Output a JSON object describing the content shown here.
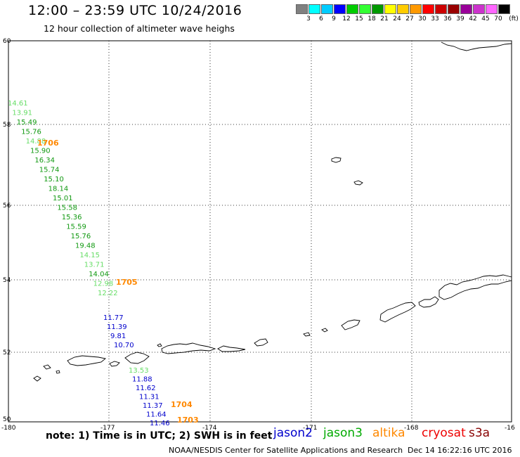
{
  "header": {
    "title": "12:00 – 23:59 UTC 10/24/2016",
    "subtitle": "12 hour collection of altimeter wave heighs"
  },
  "colorbar": {
    "unit": "(ft)",
    "colors": [
      "#808080",
      "#00ffff",
      "#00ccff",
      "#0000ff",
      "#00cc00",
      "#33ff33",
      "#009900",
      "#ffff00",
      "#ffcc00",
      "#ff9900",
      "#ff0000",
      "#cc0000",
      "#990000",
      "#990099",
      "#cc33cc",
      "#ff66ff",
      "#000000"
    ],
    "labels": [
      "3",
      "6",
      "9",
      "12",
      "15",
      "18",
      "21",
      "24",
      "27",
      "30",
      "33",
      "36",
      "39",
      "42",
      "45",
      "70"
    ]
  },
  "axes": {
    "lat_labels": [
      "60",
      "58",
      "56",
      "54",
      "52",
      "50"
    ],
    "lon_labels": [
      "-180",
      "-177",
      "-174",
      "-171",
      "-168",
      "-16"
    ]
  },
  "tracks": {
    "green_track": {
      "color": "#22aa22",
      "values": [
        "14.61",
        "13.91",
        "15.49",
        "15.76",
        "14.88",
        "15.90",
        "16.34",
        "15.74",
        "15.10",
        "18.14",
        "15.01",
        "15.58",
        "15.36",
        "15.59",
        "15.76",
        "19.48",
        "14.15",
        "13.71",
        "14.04",
        "12.98",
        "12.22"
      ],
      "shades": [
        "#66dd66",
        "#66dd66",
        "#119911",
        "#119911",
        "#66dd66",
        "#119911",
        "#119911",
        "#119911",
        "#119911",
        "#119911",
        "#119911",
        "#119911",
        "#119911",
        "#119911",
        "#119911",
        "#119911",
        "#66dd66",
        "#66dd66",
        "#119911",
        "#66dd66",
        "#66dd66"
      ]
    },
    "blue_track_upper": {
      "values": [
        "11.77",
        "11.39",
        "9.81",
        "10.70"
      ]
    },
    "lower_track": {
      "values": [
        "13.53",
        "11.88",
        "11.62",
        "11.31",
        "11.37",
        "11.64",
        "11.46"
      ],
      "shades": [
        "#66dd66",
        "#0000cc",
        "#0000cc",
        "#0000cc",
        "#0000cc",
        "#0000cc",
        "#0000cc"
      ]
    },
    "time_labels": [
      "1706",
      "1705",
      "1704",
      "1703"
    ],
    "time_color": "#ff8800"
  },
  "footer": {
    "note": "note:  1) Time is in UTC;  2) SWH is in feet",
    "satellites": [
      {
        "name": "jason2",
        "color": "#0000cc"
      },
      {
        "name": "jason3",
        "color": "#00aa00"
      },
      {
        "name": "altika",
        "color": "#ff8800"
      },
      {
        "name": "cryosat",
        "color": "#ee0000"
      },
      {
        "name": "s3a",
        "color": "#880000"
      }
    ],
    "credit": "NOAA/NESDIS Center for Satellite Applications and Research",
    "timestamp": "Dec 14 16:22:16 UTC 2016"
  }
}
